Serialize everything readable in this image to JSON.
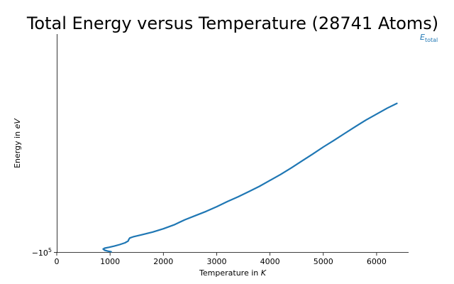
{
  "chart_data": {
    "type": "line",
    "title": "Total Energy versus Temperature (28741 Atoms)",
    "xlabel": "Temperature in K",
    "ylabel": "Energy in eV",
    "xlim": [
      0,
      6600
    ],
    "ylim": [
      -100000,
      -27000
    ],
    "x_ticks": [
      0,
      1000,
      2000,
      3000,
      4000,
      5000,
      6000
    ],
    "y_tick_label": "−10^5",
    "y_tick_value": -100000,
    "grid": false,
    "legend": "right-of-line-end",
    "series": [
      {
        "name": "E_total",
        "color": "#1f77b4",
        "points": [
          [
            1020,
            -99900
          ],
          [
            960,
            -99700
          ],
          [
            900,
            -99400
          ],
          [
            870,
            -99000
          ],
          [
            900,
            -98700
          ],
          [
            980,
            -98400
          ],
          [
            1080,
            -98000
          ],
          [
            1180,
            -97500
          ],
          [
            1280,
            -96900
          ],
          [
            1340,
            -96300
          ],
          [
            1350,
            -95800
          ],
          [
            1370,
            -95300
          ],
          [
            1430,
            -94900
          ],
          [
            1600,
            -94200
          ],
          [
            1800,
            -93300
          ],
          [
            2000,
            -92200
          ],
          [
            2200,
            -90900
          ],
          [
            2400,
            -89200
          ],
          [
            2600,
            -87800
          ],
          [
            2800,
            -86400
          ],
          [
            3000,
            -84800
          ],
          [
            3200,
            -83100
          ],
          [
            3400,
            -81500
          ],
          [
            3600,
            -79800
          ],
          [
            3800,
            -78000
          ],
          [
            4000,
            -76000
          ],
          [
            4200,
            -74000
          ],
          [
            4400,
            -71800
          ],
          [
            4600,
            -69500
          ],
          [
            4800,
            -67200
          ],
          [
            5000,
            -64800
          ],
          [
            5200,
            -62600
          ],
          [
            5400,
            -60300
          ],
          [
            5600,
            -58000
          ],
          [
            5800,
            -55800
          ],
          [
            6000,
            -53800
          ],
          [
            6200,
            -51800
          ],
          [
            6380,
            -50200
          ]
        ]
      }
    ]
  }
}
